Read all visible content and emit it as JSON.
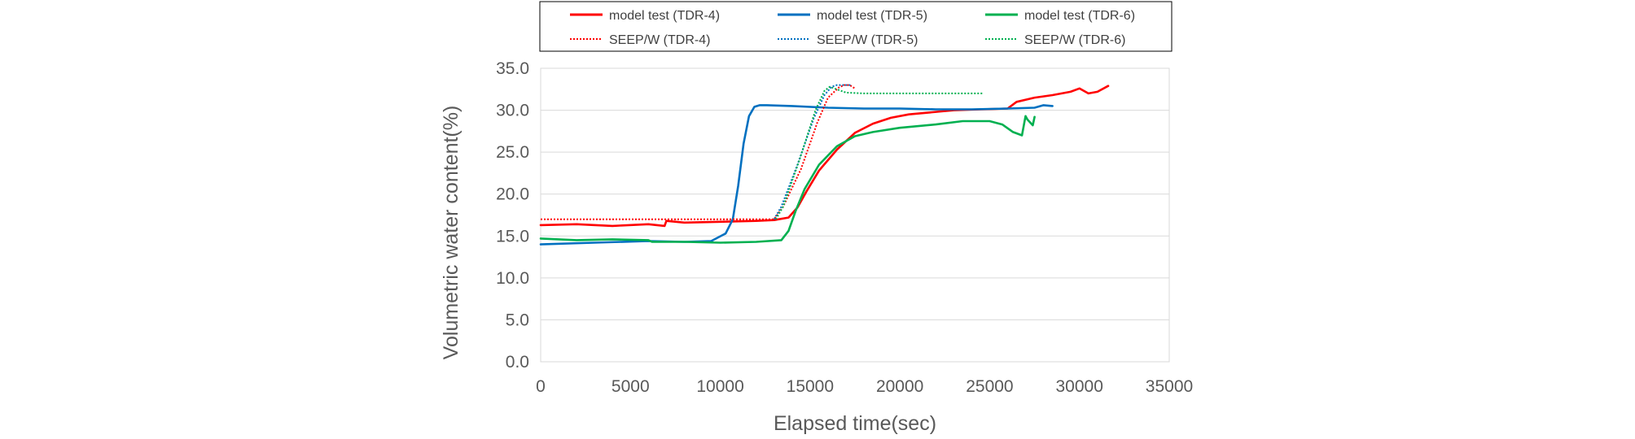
{
  "chart_data": {
    "type": "line",
    "title": "",
    "xlabel": "Elapsed time(sec)",
    "ylabel": "Volumetric water content(%)",
    "xlim": [
      0,
      35000
    ],
    "ylim": [
      0,
      35
    ],
    "x_ticks": [
      "0",
      "5000",
      "10000",
      "15000",
      "20000",
      "25000",
      "30000",
      "35000"
    ],
    "y_ticks": [
      "0.0",
      "5.0",
      "10.0",
      "15.0",
      "20.0",
      "25.0",
      "30.0",
      "35.0"
    ],
    "grid": "horizontal",
    "legend_position": "top",
    "series": [
      {
        "name": "model test (TDR-4)",
        "color": "#ff0000",
        "dash": "solid",
        "x": [
          0,
          2000,
          4000,
          6000,
          6900,
          7000,
          8000,
          10000,
          12000,
          13000,
          13800,
          14300,
          14800,
          15500,
          16500,
          17500,
          18500,
          19500,
          20500,
          21500,
          23000,
          24500,
          26000,
          26500,
          27500,
          28500,
          29500,
          30000,
          30500,
          31000,
          31600
        ],
        "y": [
          16.3,
          16.4,
          16.2,
          16.4,
          16.2,
          16.8,
          16.6,
          16.7,
          16.8,
          16.9,
          17.2,
          18.4,
          20.3,
          22.8,
          25.3,
          27.3,
          28.4,
          29.1,
          29.5,
          29.7,
          30.0,
          30.1,
          30.2,
          31.0,
          31.5,
          31.8,
          32.2,
          32.6,
          32.0,
          32.2,
          32.9
        ]
      },
      {
        "name": "model test (TDR-5)",
        "color": "#0070c0",
        "dash": "solid",
        "x": [
          0,
          3000,
          6000,
          8000,
          9500,
          10300,
          10700,
          11000,
          11300,
          11600,
          11900,
          12200,
          12600,
          14000,
          16000,
          18000,
          20000,
          22000,
          24000,
          26000,
          27500,
          28000,
          28500
        ],
        "y": [
          14.0,
          14.2,
          14.4,
          14.3,
          14.4,
          15.3,
          17.0,
          21.0,
          26.0,
          29.3,
          30.4,
          30.6,
          30.6,
          30.5,
          30.3,
          30.2,
          30.2,
          30.1,
          30.1,
          30.2,
          30.3,
          30.6,
          30.5
        ]
      },
      {
        "name": "model test (TDR-6)",
        "color": "#00b050",
        "dash": "solid",
        "x": [
          0,
          2000,
          4000,
          6000,
          6200,
          8000,
          10000,
          12000,
          13400,
          13800,
          14200,
          14700,
          15500,
          16500,
          17500,
          18500,
          20000,
          22000,
          23500,
          25000,
          25700,
          26300,
          26800,
          27000,
          27100,
          27400,
          27500
        ],
        "y": [
          14.7,
          14.5,
          14.6,
          14.5,
          14.3,
          14.3,
          14.2,
          14.3,
          14.5,
          15.6,
          18.0,
          20.6,
          23.5,
          25.7,
          26.9,
          27.4,
          27.9,
          28.3,
          28.7,
          28.7,
          28.3,
          27.4,
          27.0,
          29.3,
          28.9,
          28.2,
          29.2
        ]
      },
      {
        "name": "SEEP/W (TDR-4)",
        "color": "#ff0000",
        "dash": "dotted",
        "x": [
          0,
          13000,
          13500,
          14500,
          15400,
          16000,
          16600,
          16900,
          17200,
          17500
        ],
        "y": [
          17.0,
          17.0,
          18.5,
          23.0,
          28.5,
          31.5,
          32.7,
          33.0,
          33.0,
          32.6
        ]
      },
      {
        "name": "SEEP/W (TDR-5)",
        "color": "#0070c0",
        "dash": "dotted",
        "x": [
          13000,
          13400,
          14300,
          15200,
          15800,
          16200,
          16500,
          17000,
          17300
        ],
        "y": [
          17.0,
          18.5,
          23.5,
          29.0,
          31.8,
          32.8,
          33.0,
          33.0,
          33.0
        ]
      },
      {
        "name": "SEEP/W (TDR-6)",
        "color": "#00b050",
        "dash": "dotted",
        "x": [
          13100,
          13500,
          14400,
          15300,
          15800,
          16100,
          17000,
          18000,
          20000,
          22000,
          24600
        ],
        "y": [
          17.0,
          18.5,
          24.0,
          30.0,
          32.3,
          32.8,
          32.1,
          32.0,
          32.0,
          32.0,
          32.0
        ]
      }
    ]
  }
}
